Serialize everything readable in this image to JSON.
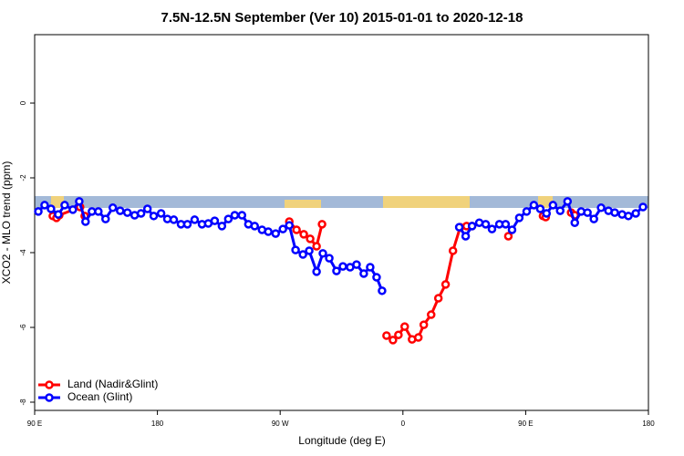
{
  "chart_data": {
    "type": "line",
    "title": "7.5N-12.5N September (Ver 10)   2015-01-01 to 2020-12-18",
    "x_label": "Longitude (deg E)",
    "y_label": "XCO2 - MLO trend (ppm)",
    "xlim": [
      90,
      540
    ],
    "ylim": [
      -8.22,
      1.83
    ],
    "xticks": [
      {
        "value": 90,
        "label": "90 E"
      },
      {
        "value": 180,
        "label": "180"
      },
      {
        "value": 270,
        "label": "90 W"
      },
      {
        "value": 360,
        "label": "0"
      },
      {
        "value": 450,
        "label": "90 E"
      },
      {
        "value": 540,
        "label": "180"
      }
    ],
    "yticks": [
      -8,
      -6,
      -4,
      -2,
      0
    ],
    "legend": "bottom-left",
    "series": [
      {
        "name": "Land (Nadir&Glint)",
        "color": "#ff0000",
        "x": [
          103.3,
          106,
          108,
          123.3,
          126.7,
          200,
          276.7,
          282,
          287.3,
          292,
          296.7,
          300.7,
          320,
          348,
          352.7,
          356.7,
          361.3,
          366.7,
          371.3,
          375.3,
          380.7,
          386,
          391.3,
          396.7,
          402,
          406.7,
          410.7,
          420,
          437.3,
          450,
          462.7,
          464.7,
          475,
          483.3,
          486
        ],
        "values": [
          -3.02,
          -3.07,
          -3.0,
          -2.78,
          -3.02,
          null,
          -3.17,
          -3.39,
          -3.51,
          -3.63,
          -3.83,
          -3.24,
          null,
          -6.22,
          -6.34,
          -6.2,
          -5.98,
          -6.32,
          -6.27,
          -5.93,
          -5.66,
          -5.22,
          -4.85,
          -3.95,
          -3.32,
          -3.29,
          -3.29,
          null,
          -3.56,
          null,
          -3.02,
          -3.05,
          null,
          -2.93,
          -3.0
        ]
      },
      {
        "name": "Ocean (Glint)",
        "color": "#0000ff",
        "x": [
          92.7,
          97.3,
          102,
          107.3,
          112,
          118,
          122.7,
          127.3,
          132,
          136.7,
          142,
          147.3,
          152.7,
          158,
          163.3,
          168,
          172.7,
          177.3,
          182.7,
          187.3,
          192,
          197.3,
          202,
          207.3,
          212.7,
          217.3,
          222,
          227.3,
          232,
          236.7,
          242,
          246.7,
          251.3,
          256.7,
          261.3,
          266.7,
          272,
          276.7,
          281.3,
          286.7,
          291.3,
          296.7,
          301.3,
          306,
          311.3,
          316,
          321.3,
          326,
          331.3,
          336,
          340.7,
          344.7,
          380,
          401.3,
          406,
          410.7,
          416,
          420.7,
          425.3,
          430.7,
          435.3,
          440,
          445.3,
          450.7,
          456,
          460.7,
          465.3,
          470,
          475.3,
          480.7,
          486,
          490.7,
          495.3,
          500,
          505.3,
          510.7,
          515.3,
          520.7,
          525.3,
          530.7,
          536
        ],
        "values": [
          -2.9,
          -2.73,
          -2.83,
          -2.98,
          -2.73,
          -2.85,
          -2.63,
          -3.17,
          -2.9,
          -2.9,
          -3.1,
          -2.8,
          -2.88,
          -2.93,
          -3.0,
          -2.95,
          -2.83,
          -3.02,
          -2.95,
          -3.1,
          -3.12,
          -3.24,
          -3.24,
          -3.12,
          -3.24,
          -3.22,
          -3.15,
          -3.29,
          -3.1,
          -3.0,
          -3.0,
          -3.24,
          -3.29,
          -3.39,
          -3.44,
          -3.49,
          -3.37,
          -3.27,
          -3.93,
          -4.05,
          -3.95,
          -4.51,
          -4.02,
          -4.15,
          -4.49,
          -4.37,
          -4.39,
          -4.32,
          -4.56,
          -4.39,
          -4.66,
          -5.02,
          null,
          -3.32,
          -3.56,
          -3.29,
          -3.2,
          -3.24,
          -3.37,
          -3.24,
          -3.24,
          -3.39,
          -3.07,
          -2.9,
          -2.73,
          -2.83,
          -2.95,
          -2.73,
          -2.88,
          -2.63,
          -3.2,
          -2.9,
          -2.93,
          -3.1,
          -2.8,
          -2.88,
          -2.93,
          -2.98,
          -3.02,
          -2.95,
          -2.78
        ]
      }
    ]
  }
}
